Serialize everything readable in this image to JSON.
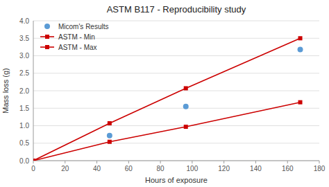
{
  "chart_data": {
    "type": "line",
    "title": "ASTM B117 - Reproducibility study",
    "x_label": "Hours of exposure",
    "y_label": "Mass loss (g)",
    "xlim": [
      0,
      180
    ],
    "ylim": [
      0,
      4
    ],
    "xticks": [
      0,
      20,
      40,
      60,
      80,
      100,
      120,
      140,
      160,
      180
    ],
    "yticks": [
      {
        "value": 0,
        "label": "0.0"
      },
      0.5,
      {
        "value": 1.0,
        "label": "1.0"
      },
      1.5,
      {
        "value": 2.0,
        "label": "2.0"
      },
      2.5,
      {
        "value": 3.0,
        "label": "3.0"
      },
      3.5,
      {
        "value": 4.0,
        "label": "4.0"
      }
    ],
    "grid": true,
    "legend": "top-left",
    "series": [
      {
        "name": "Micom's Results",
        "type": "scatter",
        "marker": "circle",
        "color": "#5b9bd5",
        "x": [
          48,
          96,
          168
        ],
        "values": [
          0.72,
          1.55,
          3.18
        ]
      },
      {
        "name": "ASTM - Min",
        "type": "line",
        "marker": "square",
        "line_style": "solid",
        "color": "#cc0000",
        "x": [
          0,
          48,
          96,
          168
        ],
        "values": [
          0,
          0.54,
          0.97,
          1.67
        ]
      },
      {
        "name": "ASTM - Max",
        "type": "line",
        "marker": "square",
        "line_style": "solid",
        "color": "#cc0000",
        "x": [
          0,
          48,
          96,
          168
        ],
        "values": [
          0,
          1.07,
          2.07,
          3.5
        ]
      }
    ]
  }
}
